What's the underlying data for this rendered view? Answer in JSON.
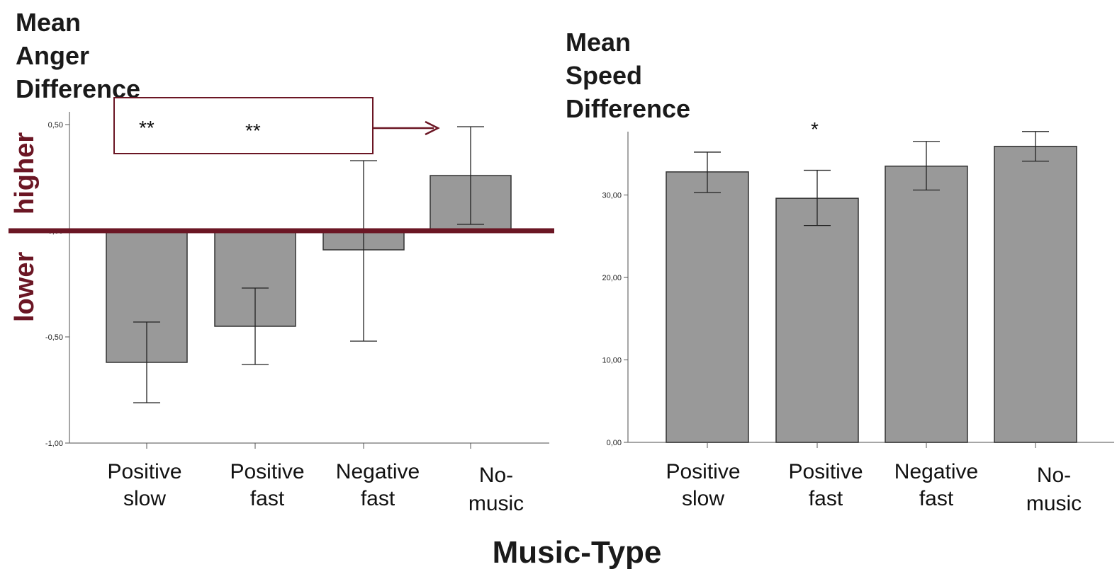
{
  "x_title": "Music-Type",
  "annotations": {
    "higher": "higher",
    "lower": "lower",
    "color": "#6b1624"
  },
  "chart_data": [
    {
      "type": "bar",
      "title": "",
      "ylabel_lines": [
        "Mean",
        "Anger",
        "Difference"
      ],
      "categories": [
        [
          "Positive",
          "slow"
        ],
        [
          "Positive",
          "fast"
        ],
        [
          "Negative",
          "fast"
        ],
        [
          "No-",
          "music"
        ]
      ],
      "values": [
        -0.62,
        -0.45,
        -0.09,
        0.26
      ],
      "error_low": [
        -0.81,
        -0.63,
        -0.52,
        0.03
      ],
      "error_high": [
        -0.43,
        -0.27,
        0.33,
        0.49
      ],
      "ylim": [
        -1.0,
        0.55
      ],
      "yticks": [
        0.5,
        0.0,
        -0.5,
        -1.0
      ],
      "ytick_labels": [
        "0,50",
        "0,00",
        "-0,50",
        "-1,00"
      ],
      "significance": [
        "**",
        "**"
      ],
      "bar_color": "#999999"
    },
    {
      "type": "bar",
      "title": "",
      "ylabel_lines": [
        "Mean",
        "Speed",
        "Difference"
      ],
      "categories": [
        [
          "Positive",
          "slow"
        ],
        [
          "Positive",
          "fast"
        ],
        [
          "Negative",
          "fast"
        ],
        [
          "No-",
          "music"
        ]
      ],
      "values": [
        32.8,
        29.6,
        33.5,
        35.9
      ],
      "error_low": [
        30.3,
        26.3,
        30.6,
        34.1
      ],
      "error_high": [
        35.2,
        33.0,
        36.5,
        37.7
      ],
      "ylim": [
        0,
        38
      ],
      "yticks": [
        0,
        10,
        20,
        30
      ],
      "ytick_labels": [
        "0,00",
        "10,00",
        "20,00",
        "30,00"
      ],
      "significance": [
        "*"
      ],
      "bar_color": "#999999"
    }
  ]
}
